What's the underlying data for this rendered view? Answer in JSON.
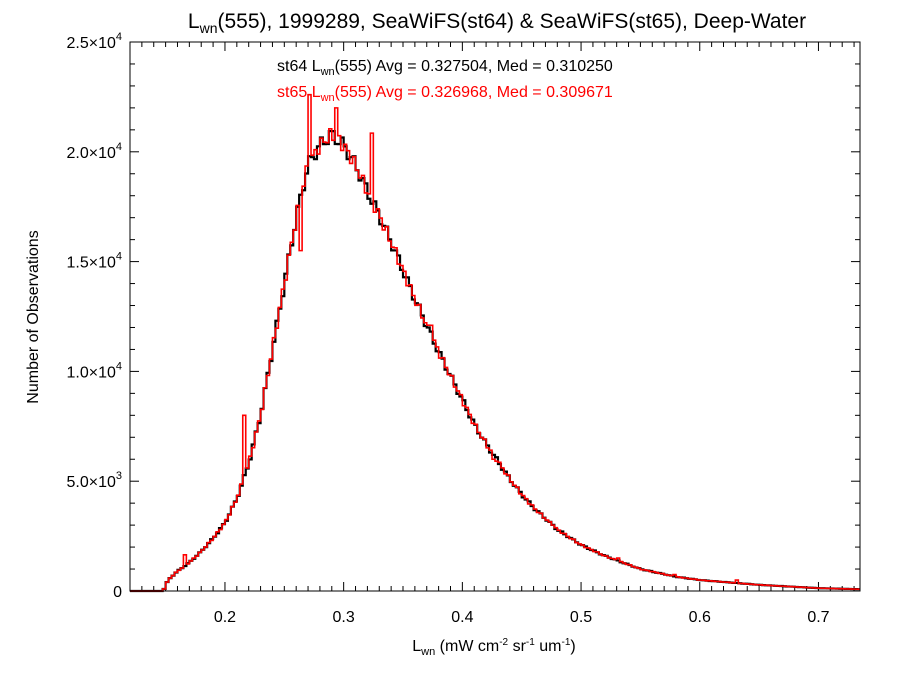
{
  "chart_data": {
    "type": "line",
    "title": {
      "prefix": "L",
      "sub": "wn",
      "rest": "(555), 1999289, SeaWiFS(st64) & SeaWiFS(st65), Deep-Water"
    },
    "xlabel": {
      "prefix": "L",
      "sub": "wn",
      "parts": [
        {
          "text": " (mW cm"
        },
        {
          "sup": "-2"
        },
        {
          "text": " sr"
        },
        {
          "sup": "-1"
        },
        {
          "text": " um"
        },
        {
          "sup": "-1"
        },
        {
          "text": ")"
        }
      ]
    },
    "ylabel": "Number of Observations",
    "xlim": [
      0.12,
      0.735
    ],
    "ylim": [
      0,
      25000
    ],
    "x_ticks": [
      {
        "value": 0.2,
        "label": "0.2"
      },
      {
        "value": 0.3,
        "label": "0.3"
      },
      {
        "value": 0.4,
        "label": "0.4"
      },
      {
        "value": 0.5,
        "label": "0.5"
      },
      {
        "value": 0.6,
        "label": "0.6"
      },
      {
        "value": 0.7,
        "label": "0.7"
      }
    ],
    "y_ticks": [
      {
        "value": 0,
        "mant": "0",
        "exp": ""
      },
      {
        "value": 5000,
        "mant": "5.0×10",
        "exp": "3"
      },
      {
        "value": 10000,
        "mant": "1.0×10",
        "exp": "4"
      },
      {
        "value": 15000,
        "mant": "1.5×10",
        "exp": "4"
      },
      {
        "value": 20000,
        "mant": "2.0×10",
        "exp": "4"
      },
      {
        "value": 25000,
        "mant": "2.5×10",
        "exp": "4"
      }
    ],
    "annotations": [
      {
        "color": "#000000",
        "pre": "st64 L",
        "sub": "wn",
        "post": "(555) Avg = 0.327504, Med = 0.310250"
      },
      {
        "color": "#ff0000",
        "pre": "st65 L",
        "sub": "wn",
        "post": "(555) Avg = 0.326968, Med = 0.309671"
      }
    ],
    "bin_width": 0.0025,
    "curve_x": [
      0.12,
      0.148,
      0.152,
      0.16,
      0.17,
      0.18,
      0.19,
      0.2,
      0.21,
      0.22,
      0.23,
      0.24,
      0.25,
      0.26,
      0.27,
      0.28,
      0.29,
      0.3,
      0.31,
      0.32,
      0.33,
      0.34,
      0.35,
      0.36,
      0.37,
      0.38,
      0.39,
      0.4,
      0.41,
      0.42,
      0.43,
      0.44,
      0.45,
      0.46,
      0.47,
      0.48,
      0.49,
      0.5,
      0.52,
      0.55,
      0.58,
      0.6,
      0.65,
      0.7,
      0.735
    ],
    "curve_y": [
      0,
      0,
      500,
      900,
      1300,
      1800,
      2400,
      3100,
      4200,
      5800,
      8000,
      11000,
      14000,
      17000,
      19400,
      20300,
      20800,
      20300,
      19400,
      18200,
      17100,
      15900,
      14600,
      13300,
      12100,
      10900,
      9800,
      8700,
      7600,
      6700,
      5900,
      5100,
      4400,
      3800,
      3300,
      2800,
      2450,
      2100,
      1600,
      1000,
      650,
      500,
      280,
      130,
      80
    ],
    "series": [
      {
        "name": "st64",
        "color": "#000000",
        "spikes": []
      },
      {
        "name": "st65",
        "color": "#ff0000",
        "spikes": [
          {
            "x": 0.165,
            "y": 1650
          },
          {
            "x": 0.215,
            "y": 8000
          },
          {
            "x": 0.2625,
            "y": 15500
          },
          {
            "x": 0.27,
            "y": 22600
          },
          {
            "x": 0.2925,
            "y": 22000
          },
          {
            "x": 0.3225,
            "y": 20850
          },
          {
            "x": 0.3725,
            "y": 12100
          },
          {
            "x": 0.425,
            "y": 6000
          },
          {
            "x": 0.475,
            "y": 3000
          },
          {
            "x": 0.53,
            "y": 1500
          },
          {
            "x": 0.5775,
            "y": 750
          },
          {
            "x": 0.63,
            "y": 500
          }
        ]
      }
    ]
  }
}
